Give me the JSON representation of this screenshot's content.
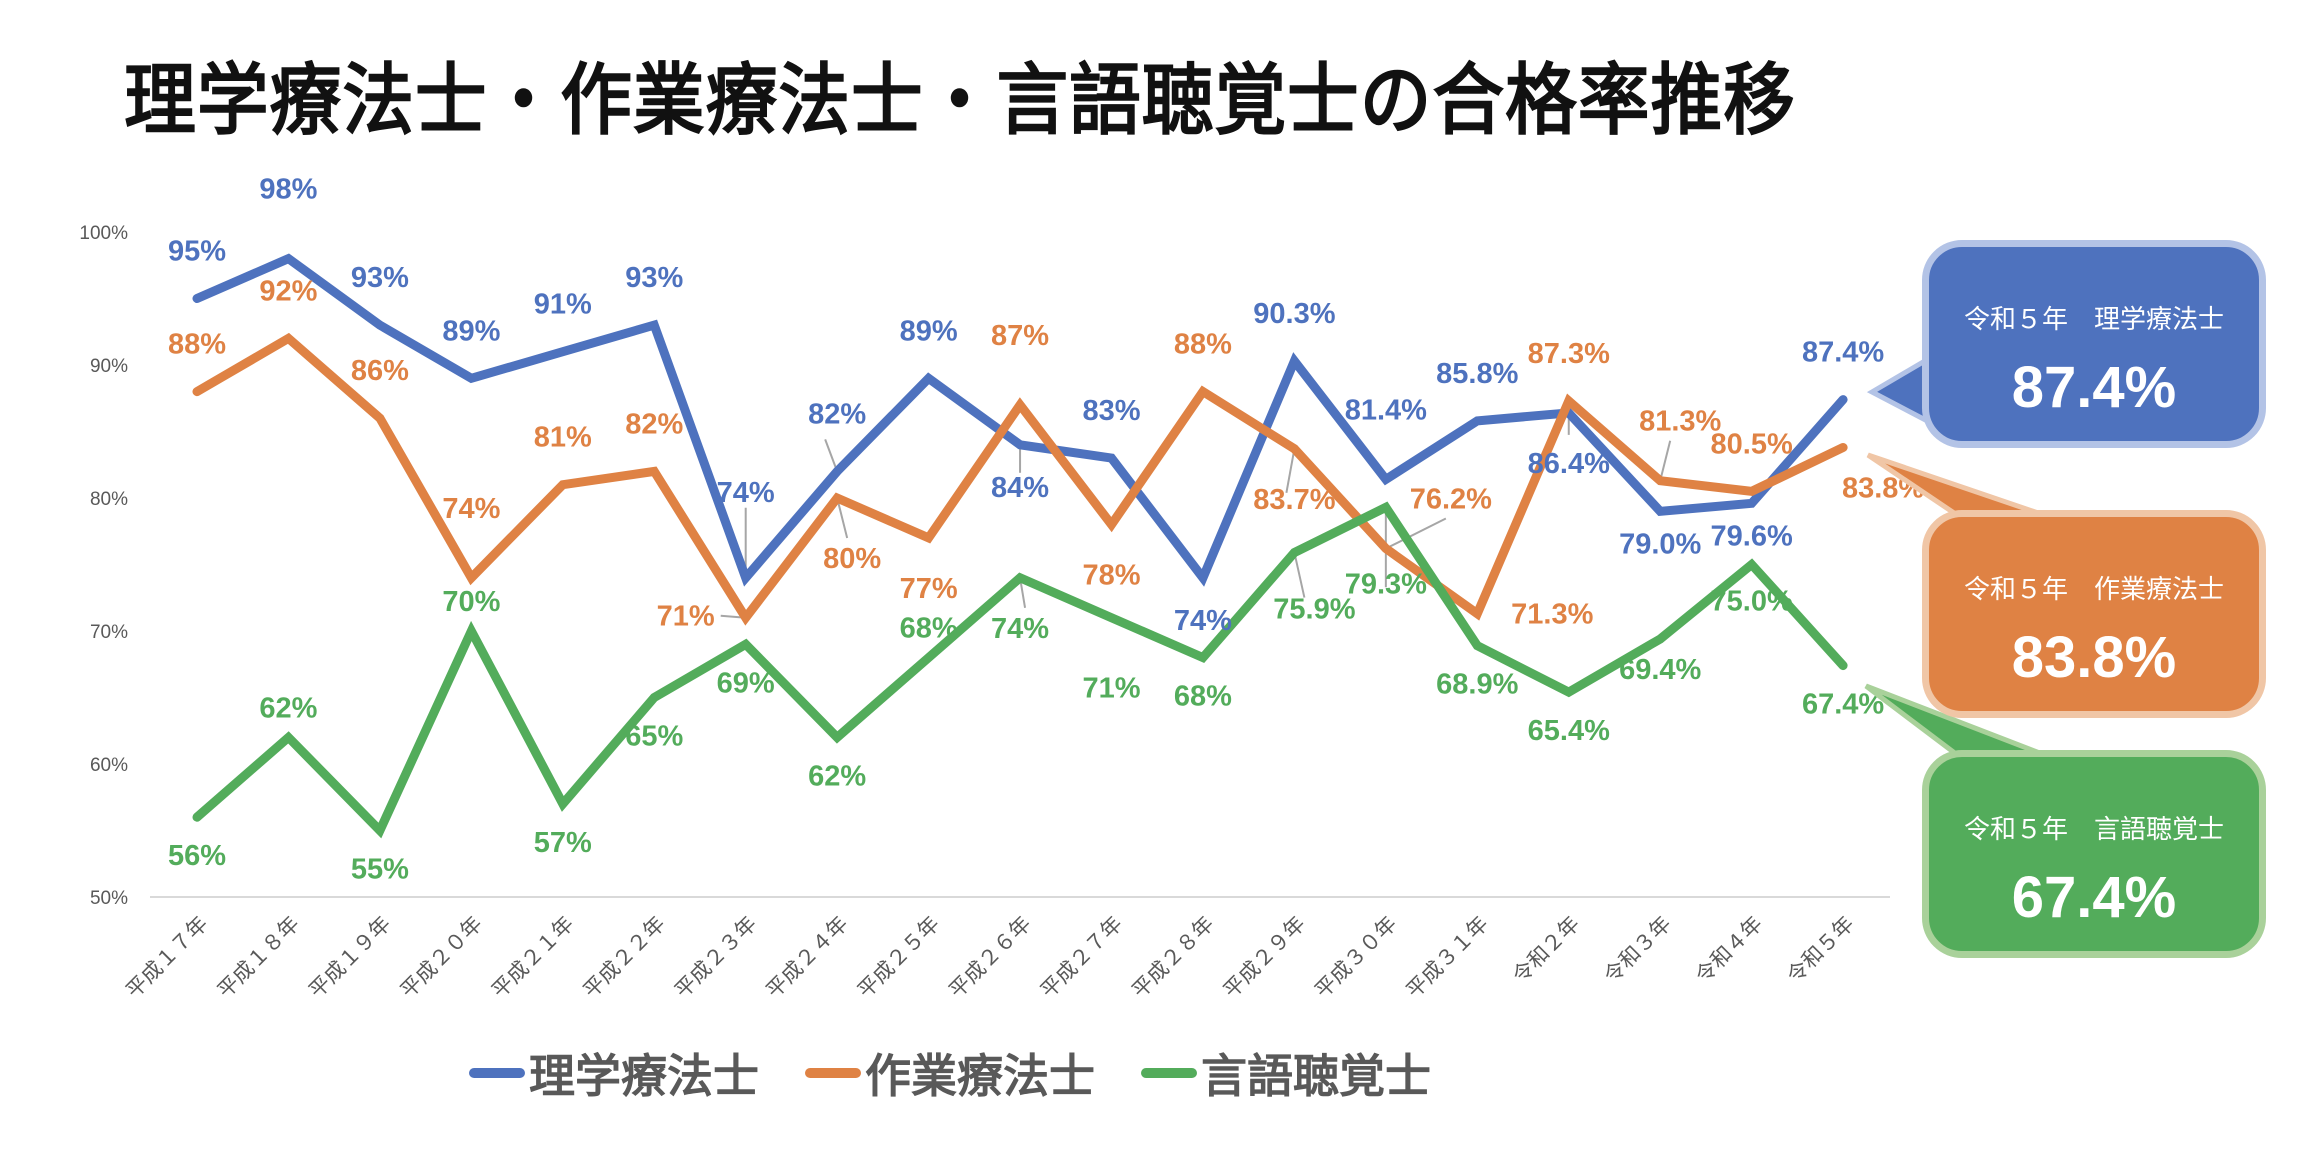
{
  "title": "理学療法士・作業療法士・言語聴覚士の合格率推移",
  "chart_data": {
    "type": "line",
    "title": "理学療法士・作業療法士・言語聴覚士の合格率推移",
    "xlabel": "",
    "ylabel": "",
    "ylim": [
      50,
      100
    ],
    "yticks": [
      "50%",
      "60%",
      "70%",
      "80%",
      "90%",
      "100%"
    ],
    "grid": false,
    "legend_position": "bottom",
    "categories": [
      "平成１７年",
      "平成１８年",
      "平成１９年",
      "平成２０年",
      "平成２１年",
      "平成２２年",
      "平成２３年",
      "平成２４年",
      "平成２５年",
      "平成２６年",
      "平成２７年",
      "平成２８年",
      "平成２９年",
      "平成３０年",
      "平成３１年",
      "令和２年",
      "令和３年",
      "令和４年",
      "令和５年"
    ],
    "series": [
      {
        "name": "理学療法士",
        "color": "#4e72be",
        "values": [
          95,
          98,
          93,
          89,
          91,
          93,
          74,
          82,
          89,
          84,
          83,
          74,
          90.3,
          81.4,
          85.8,
          86.4,
          79.0,
          79.6,
          87.4
        ],
        "labels": [
          "95%",
          "98%",
          "93%",
          "89%",
          "91%",
          "93%",
          "74%",
          "82%",
          "89%",
          "84%",
          "83%",
          "74%",
          "90.3%",
          "81.4%",
          "85.8%",
          "86.4%",
          "79.0%",
          "79.6%",
          "87.4%"
        ]
      },
      {
        "name": "作業療法士",
        "color": "#df8244",
        "values": [
          88,
          92,
          86,
          74,
          81,
          82,
          71,
          80,
          77,
          87,
          78,
          88,
          83.7,
          76.2,
          71.3,
          87.3,
          81.3,
          80.5,
          83.8
        ],
        "labels": [
          "88%",
          "92%",
          "86%",
          "74%",
          "81%",
          "82%",
          "71%",
          "80%",
          "77%",
          "87%",
          "78%",
          "88%",
          "83.7%",
          "76.2%",
          "71.3%",
          "87.3%",
          "81.3%",
          "80.5%",
          "83.8%"
        ]
      },
      {
        "name": "言語聴覚士",
        "color": "#53ac5b",
        "values": [
          56,
          62,
          55,
          70,
          57,
          65,
          69,
          62,
          68,
          74,
          71,
          68,
          75.9,
          79.3,
          68.9,
          65.4,
          69.4,
          75.0,
          67.4
        ],
        "labels": [
          "56%",
          "62%",
          "55%",
          "70%",
          "57%",
          "65%",
          "69%",
          "62%",
          "68%",
          "74%",
          "71%",
          "68%",
          "75.9%",
          "79.3%",
          "68.9%",
          "65.4%",
          "69.4%",
          "75.0%",
          "67.4%"
        ]
      }
    ]
  },
  "callouts": [
    {
      "subtitle": "令和５年　理学療法士",
      "value": "87.4%"
    },
    {
      "subtitle": "令和５年　作業療法士",
      "value": "83.8%"
    },
    {
      "subtitle": "令和５年　言語聴覚士",
      "value": "67.4%"
    }
  ],
  "legend": [
    {
      "label": "理学療法士",
      "color": "#4e72be"
    },
    {
      "label": "作業療法士",
      "color": "#df8244"
    },
    {
      "label": "言語聴覚士",
      "color": "#53ac5b"
    }
  ]
}
